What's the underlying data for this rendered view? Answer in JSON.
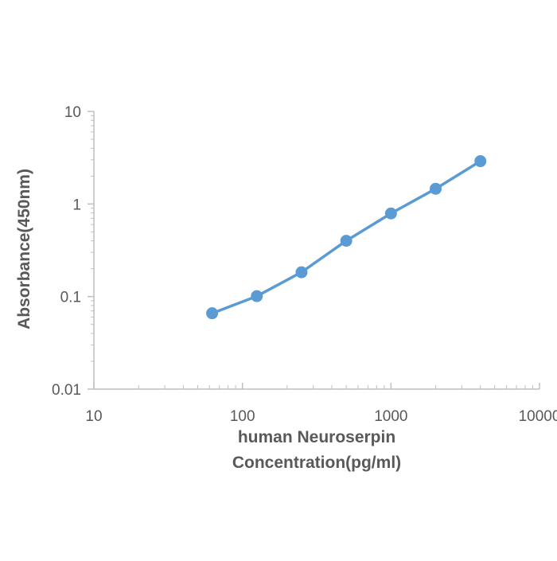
{
  "chart_data": {
    "type": "line",
    "xlabel_lines": [
      "human Neuroserpin",
      "Concentration(pg/ml)"
    ],
    "ylabel": "Absorbance(450nm)",
    "x_scale": "log",
    "y_scale": "log",
    "xlim": [
      10,
      10000
    ],
    "ylim": [
      0.01,
      10
    ],
    "x_ticks": [
      10,
      100,
      1000,
      10000
    ],
    "x_tick_labels": [
      "10",
      "100",
      "1000",
      "10000"
    ],
    "y_ticks": [
      0.01,
      0.1,
      1,
      10
    ],
    "y_tick_labels": [
      "0.01",
      "0.1",
      "1",
      "10"
    ],
    "grid": false,
    "legend": "none",
    "series": [
      {
        "color": "#5b9bd5",
        "x": [
          62.5,
          125,
          250,
          500,
          1000,
          2000,
          4000
        ],
        "y": [
          0.066,
          0.101,
          0.183,
          0.4,
          0.79,
          1.46,
          2.9
        ]
      }
    ]
  }
}
